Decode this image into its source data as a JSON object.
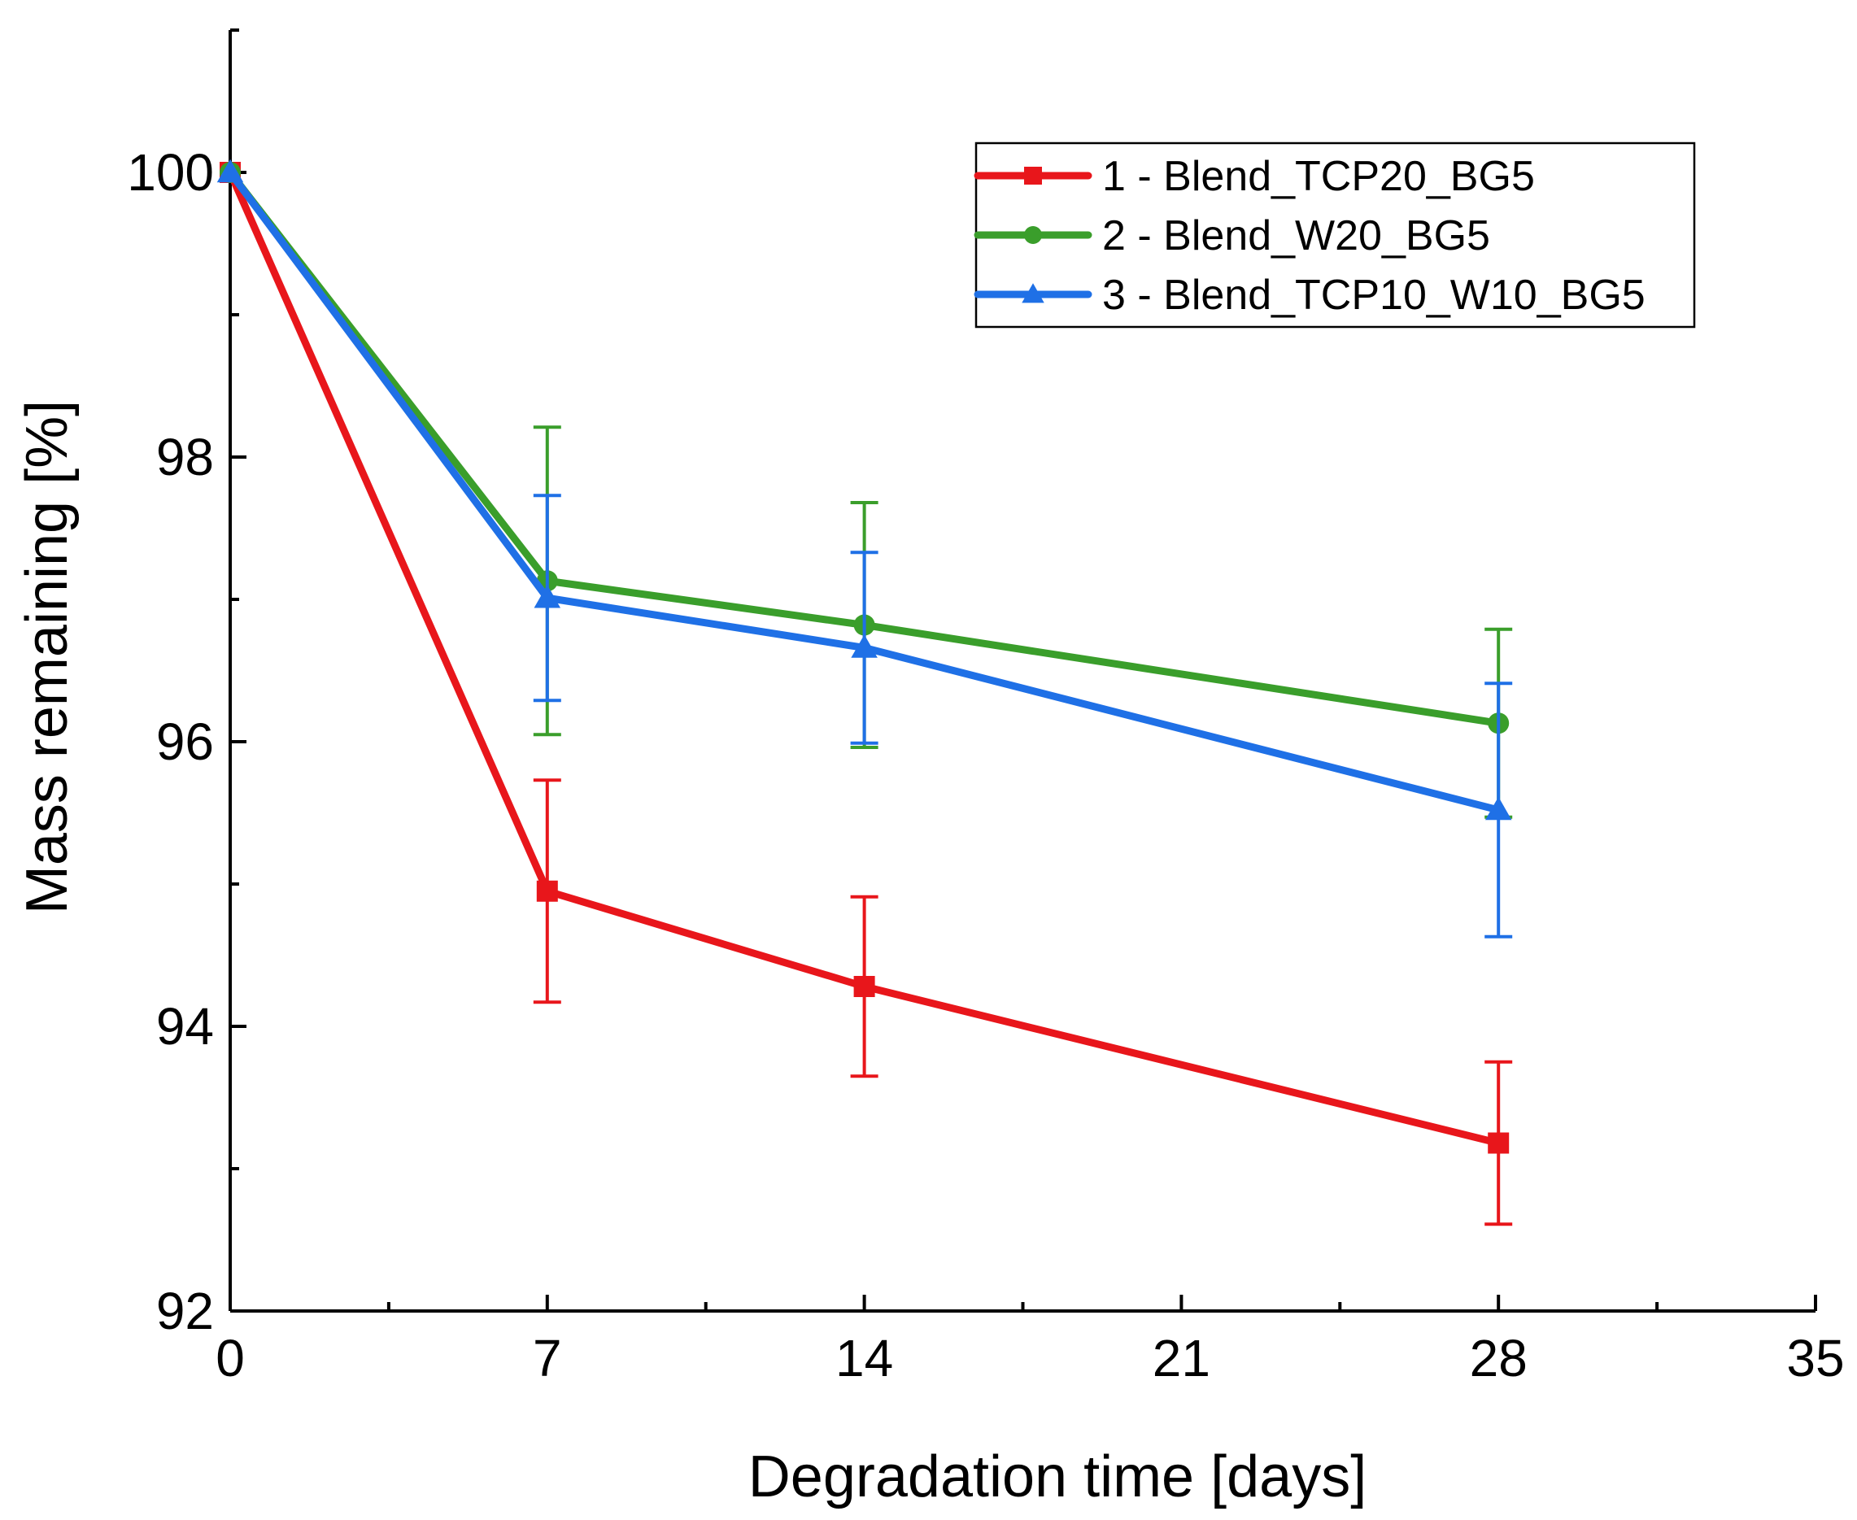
{
  "chart_data": {
    "type": "line",
    "title": "",
    "xlabel": "Degradation time [days]",
    "ylabel": "Mass remaining [%]",
    "xlim": [
      0,
      35
    ],
    "ylim": [
      92,
      101
    ],
    "xticks": [
      0,
      7,
      14,
      21,
      28,
      35
    ],
    "yticks": [
      92,
      94,
      96,
      98,
      100
    ],
    "x_minor_ticks": [
      3.5,
      10.5,
      17.5,
      24.5,
      31.5
    ],
    "y_minor_ticks": [
      93,
      95,
      97,
      99,
      101
    ],
    "grid": false,
    "legend_position": "top-right",
    "x": [
      0,
      7,
      14,
      28
    ],
    "series": [
      {
        "name": "1 - Blend_TCP20_BG5",
        "color": "#e8161b",
        "marker": "square",
        "values": [
          100,
          94.95,
          94.28,
          93.18
        ],
        "error": [
          0,
          0.78,
          0.63,
          0.57
        ]
      },
      {
        "name": "2 - Blend_W20_BG5",
        "color": "#3a9e2b",
        "marker": "circle",
        "values": [
          100,
          97.13,
          96.82,
          96.13
        ],
        "error": [
          0,
          1.08,
          0.86,
          0.66
        ]
      },
      {
        "name": "3 - Blend_TCP10_W10_BG5",
        "color": "#1f70e6",
        "marker": "triangle",
        "values": [
          100,
          97.01,
          96.66,
          95.52
        ],
        "error": [
          0,
          0.72,
          0.67,
          0.89
        ]
      }
    ]
  }
}
